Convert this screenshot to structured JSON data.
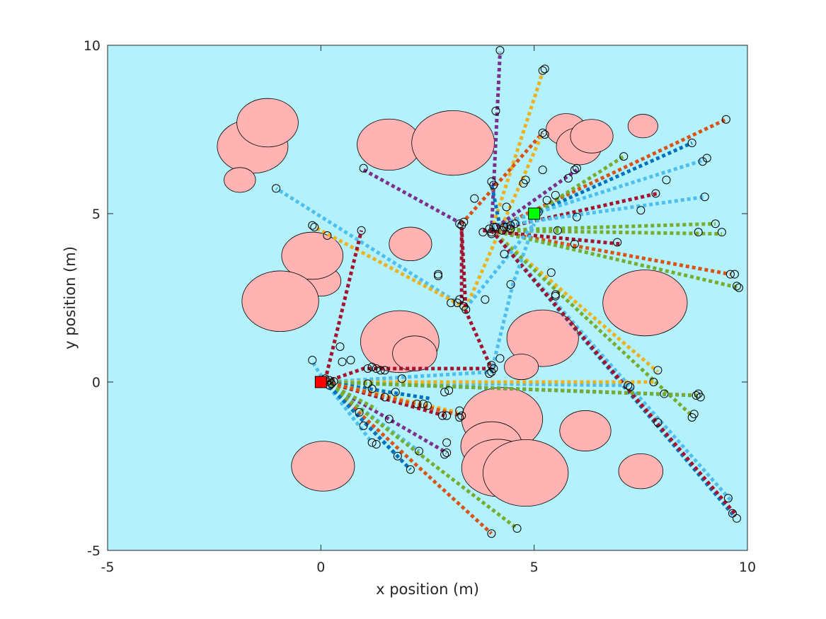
{
  "chart_data": {
    "type": "scatter",
    "xlabel": "x position (m)",
    "ylabel": "y position (m)",
    "xlim": [
      -5,
      10
    ],
    "ylim": [
      -5,
      10
    ],
    "xticks": [
      -5,
      0,
      5,
      10
    ],
    "yticks": [
      -5,
      0,
      5,
      10
    ],
    "grid": false,
    "colors": {
      "background": "#b3f2fc",
      "obstacle_fill": "#ffb3b3",
      "obstacle_edge": "#000000",
      "start_marker": "#ff0000",
      "goal_marker": "#00ff00",
      "axis": "#262626",
      "paths": [
        "#0072bd",
        "#d95319",
        "#edb120",
        "#7e2f8e",
        "#77ac30",
        "#4dbeee",
        "#a2142f"
      ]
    },
    "start": {
      "x": 0,
      "y": 0
    },
    "goal": {
      "x": 5,
      "y": 5
    },
    "obstacles": [
      {
        "cx": -1.6,
        "cy": 7.0,
        "rx": 0.83,
        "ry": 0.8
      },
      {
        "cx": -1.25,
        "cy": 7.7,
        "rx": 0.72,
        "ry": 0.72
      },
      {
        "cx": -1.9,
        "cy": 6.0,
        "rx": 0.37,
        "ry": 0.37
      },
      {
        "cx": 1.6,
        "cy": 7.05,
        "rx": 0.75,
        "ry": 0.76
      },
      {
        "cx": 3.1,
        "cy": 7.1,
        "rx": 0.97,
        "ry": 0.96
      },
      {
        "cx": 5.75,
        "cy": 7.5,
        "rx": 0.47,
        "ry": 0.47
      },
      {
        "cx": 6.05,
        "cy": 7.0,
        "rx": 0.53,
        "ry": 0.55
      },
      {
        "cx": 6.35,
        "cy": 7.3,
        "rx": 0.5,
        "ry": 0.5
      },
      {
        "cx": 7.55,
        "cy": 7.6,
        "rx": 0.35,
        "ry": 0.35
      },
      {
        "cx": 2.1,
        "cy": 4.1,
        "rx": 0.5,
        "ry": 0.5
      },
      {
        "cx": 0.0,
        "cy": 3.0,
        "rx": 0.47,
        "ry": 0.45
      },
      {
        "cx": -0.2,
        "cy": 3.75,
        "rx": 0.72,
        "ry": 0.7
      },
      {
        "cx": -0.95,
        "cy": 2.4,
        "rx": 0.9,
        "ry": 0.9
      },
      {
        "cx": 1.85,
        "cy": 1.2,
        "rx": 0.92,
        "ry": 0.92
      },
      {
        "cx": 2.2,
        "cy": 0.85,
        "rx": 0.52,
        "ry": 0.52
      },
      {
        "cx": 5.2,
        "cy": 1.3,
        "rx": 0.84,
        "ry": 0.84
      },
      {
        "cx": 4.7,
        "cy": 0.45,
        "rx": 0.4,
        "ry": 0.38
      },
      {
        "cx": 7.6,
        "cy": 2.35,
        "rx": 0.99,
        "ry": 0.98
      },
      {
        "cx": 4.25,
        "cy": -1.1,
        "rx": 0.95,
        "ry": 0.94
      },
      {
        "cx": 4.0,
        "cy": -1.9,
        "rx": 0.72,
        "ry": 0.72
      },
      {
        "cx": 4.15,
        "cy": -2.55,
        "rx": 0.85,
        "ry": 0.85
      },
      {
        "cx": 4.8,
        "cy": -2.7,
        "rx": 1.0,
        "ry": 0.99
      },
      {
        "cx": 6.2,
        "cy": -1.45,
        "rx": 0.6,
        "ry": 0.6
      },
      {
        "cx": 7.5,
        "cy": -2.65,
        "rx": 0.52,
        "ry": 0.52
      },
      {
        "cx": 0.05,
        "cy": -2.5,
        "rx": 0.74,
        "ry": 0.74
      }
    ],
    "paths": [
      {
        "c": 3,
        "p": [
          [
            3.3,
            4.7
          ],
          [
            1.0,
            6.3
          ]
        ]
      },
      {
        "c": 3,
        "p": [
          [
            4.0,
            4.5
          ],
          [
            4.2,
            9.8
          ]
        ]
      },
      {
        "c": 2,
        "p": [
          [
            4.0,
            4.5
          ],
          [
            5.2,
            9.2
          ]
        ]
      },
      {
        "c": 1,
        "p": [
          [
            3.3,
            4.7
          ],
          [
            5.2,
            7.4
          ]
        ]
      },
      {
        "c": 2,
        "p": [
          [
            3.4,
            2.2
          ],
          [
            5.2,
            7.4
          ]
        ]
      },
      {
        "c": 0,
        "p": [
          [
            4.2,
            4.6
          ],
          [
            4.0,
            5.9
          ]
        ]
      },
      {
        "c": 5,
        "p": [
          [
            3.4,
            2.2
          ],
          [
            -1.05,
            5.75
          ]
        ]
      },
      {
        "c": 2,
        "p": [
          [
            3.4,
            2.2
          ],
          [
            -0.15,
            4.6
          ]
        ]
      },
      {
        "c": 6,
        "p": [
          [
            0.1,
            0.05
          ],
          [
            0.95,
            4.5
          ]
        ]
      },
      {
        "c": 1,
        "p": [
          [
            4.0,
            4.5
          ],
          [
            9.5,
            7.8
          ]
        ]
      },
      {
        "c": 0,
        "p": [
          [
            5.0,
            5.0
          ],
          [
            8.7,
            7.1
          ]
        ]
      },
      {
        "c": 4,
        "p": [
          [
            5.0,
            5.0
          ],
          [
            7.1,
            6.7
          ]
        ]
      },
      {
        "c": 5,
        "p": [
          [
            4.0,
            4.6
          ],
          [
            9.0,
            6.6
          ]
        ]
      },
      {
        "c": 6,
        "p": [
          [
            4.0,
            4.5
          ],
          [
            7.9,
            5.6
          ]
        ]
      },
      {
        "c": 5,
        "p": [
          [
            4.0,
            4.6
          ],
          [
            9.0,
            5.5
          ]
        ]
      },
      {
        "c": 4,
        "p": [
          [
            4.0,
            4.5
          ],
          [
            9.25,
            4.7
          ]
        ]
      },
      {
        "c": 4,
        "p": [
          [
            4.0,
            4.5
          ],
          [
            9.4,
            4.4
          ]
        ]
      },
      {
        "c": 1,
        "p": [
          [
            4.0,
            4.5
          ],
          [
            9.6,
            3.2
          ]
        ]
      },
      {
        "c": 4,
        "p": [
          [
            4.0,
            4.5
          ],
          [
            9.8,
            2.8
          ]
        ]
      },
      {
        "c": 6,
        "p": [
          [
            3.8,
            4.5
          ],
          [
            7.0,
            4.1
          ]
        ]
      },
      {
        "c": 2,
        "p": [
          [
            4.0,
            4.5
          ],
          [
            7.9,
            0.3
          ]
        ]
      },
      {
        "c": 4,
        "p": [
          [
            4.0,
            4.5
          ],
          [
            8.7,
            -1.0
          ]
        ]
      },
      {
        "c": 1,
        "p": [
          [
            4.0,
            4.5
          ],
          [
            7.9,
            -1.2
          ]
        ]
      },
      {
        "c": 0,
        "p": [
          [
            4.0,
            4.5
          ],
          [
            9.7,
            -4.0
          ]
        ]
      },
      {
        "c": 5,
        "p": [
          [
            4.0,
            4.5
          ],
          [
            9.6,
            -3.5
          ]
        ]
      },
      {
        "c": 6,
        "p": [
          [
            4.0,
            4.5
          ],
          [
            9.7,
            -3.9
          ]
        ]
      },
      {
        "c": 3,
        "p": [
          [
            4.0,
            4.5
          ],
          [
            6.0,
            6.3
          ]
        ]
      },
      {
        "c": 5,
        "p": [
          [
            3.4,
            2.2
          ],
          [
            5.0,
            4.7
          ]
        ]
      },
      {
        "c": 6,
        "p": [
          [
            3.3,
            2.3
          ],
          [
            3.3,
            4.6
          ]
        ]
      },
      {
        "c": 6,
        "p": [
          [
            0.1,
            0.0
          ],
          [
            1.0,
            0.4
          ],
          [
            4.0,
            0.4
          ],
          [
            3.4,
            2.1
          ],
          [
            3.3,
            4.6
          ]
        ]
      },
      {
        "c": 5,
        "p": [
          [
            0.1,
            0.0
          ],
          [
            4.0,
            0.3
          ],
          [
            4.5,
            2.9
          ],
          [
            5.0,
            4.7
          ]
        ]
      },
      {
        "c": 5,
        "p": [
          [
            0.1,
            0.0
          ],
          [
            7.2,
            -0.1
          ]
        ]
      },
      {
        "c": 2,
        "p": [
          [
            0.1,
            0.0
          ],
          [
            7.8,
            0.0
          ]
        ]
      },
      {
        "c": 0,
        "p": [
          [
            0.1,
            0.0
          ],
          [
            8.8,
            -0.4
          ]
        ]
      },
      {
        "c": 4,
        "p": [
          [
            0.1,
            0.0
          ],
          [
            8.9,
            -0.4
          ]
        ]
      },
      {
        "c": 0,
        "p": [
          [
            0.1,
            0.0
          ],
          [
            2.6,
            -0.5
          ]
        ]
      },
      {
        "c": 2,
        "p": [
          [
            0.1,
            0.0
          ],
          [
            3.2,
            -0.9
          ]
        ]
      },
      {
        "c": 6,
        "p": [
          [
            0.1,
            0.0
          ],
          [
            2.9,
            -1.0
          ]
        ]
      },
      {
        "c": 1,
        "p": [
          [
            0.1,
            0.0
          ],
          [
            3.3,
            -1.0
          ]
        ]
      },
      {
        "c": 3,
        "p": [
          [
            0.1,
            0.0
          ],
          [
            2.95,
            -2.1
          ]
        ]
      },
      {
        "c": 5,
        "p": [
          [
            0.1,
            0.0
          ],
          [
            2.3,
            -2.05
          ]
        ]
      },
      {
        "c": 0,
        "p": [
          [
            0.1,
            0.0
          ],
          [
            2.1,
            -2.6
          ]
        ]
      },
      {
        "c": 1,
        "p": [
          [
            0.1,
            0.0
          ],
          [
            4.0,
            -4.5
          ]
        ]
      },
      {
        "c": 4,
        "p": [
          [
            0.1,
            0.0
          ],
          [
            4.6,
            -4.35
          ]
        ]
      },
      {
        "c": 5,
        "p": [
          [
            0.1,
            0.0
          ],
          [
            1.2,
            -1.8
          ]
        ]
      },
      {
        "c": 0,
        "p": [
          [
            0.1,
            0.0
          ],
          [
            1.8,
            -2.2
          ]
        ]
      },
      {
        "c": 4,
        "p": [
          [
            0.1,
            0.0
          ],
          [
            1.3,
            -0.8
          ]
        ]
      },
      {
        "c": 5,
        "p": [
          [
            0.1,
            0.0
          ],
          [
            -0.2,
            0.6
          ]
        ]
      }
    ],
    "waypoints": [
      [
        0.0,
        0.05
      ],
      [
        0.1,
        0.1
      ],
      [
        0.15,
        0.0
      ],
      [
        0.2,
        0.05
      ],
      [
        0.25,
        -0.05
      ],
      [
        0.2,
        -0.1
      ],
      [
        0.3,
        0.02
      ],
      [
        -0.2,
        0.65
      ],
      [
        0.45,
        1.05
      ],
      [
        0.5,
        0.6
      ],
      [
        0.95,
        4.5
      ],
      [
        -0.15,
        4.6
      ],
      [
        -0.2,
        4.65
      ],
      [
        0.15,
        4.35
      ],
      [
        1.1,
        0.4
      ],
      [
        1.2,
        0.45
      ],
      [
        1.3,
        0.4
      ],
      [
        1.4,
        0.35
      ],
      [
        1.5,
        0.35
      ],
      [
        1.1,
        -0.05
      ],
      [
        1.2,
        -0.2
      ],
      [
        1.5,
        -0.45
      ],
      [
        1.75,
        -0.3
      ],
      [
        1.9,
        0.1
      ],
      [
        2.25,
        -0.65
      ],
      [
        2.4,
        -0.65
      ],
      [
        2.5,
        -0.7
      ],
      [
        2.9,
        -0.3
      ],
      [
        3.0,
        -0.25
      ],
      [
        2.85,
        -1.0
      ],
      [
        2.95,
        -1.0
      ],
      [
        3.25,
        -0.85
      ],
      [
        3.3,
        -1.0
      ],
      [
        3.25,
        -1.05
      ],
      [
        2.95,
        -1.8
      ],
      [
        2.95,
        -2.1
      ],
      [
        2.9,
        -2.15
      ],
      [
        2.3,
        -2.05
      ],
      [
        1.8,
        -2.2
      ],
      [
        1.2,
        -1.8
      ],
      [
        1.3,
        -1.85
      ],
      [
        2.1,
        -2.6
      ],
      [
        0.9,
        -0.9
      ],
      [
        1.0,
        -1.3
      ],
      [
        1.6,
        -1.1
      ],
      [
        4.0,
        -4.5
      ],
      [
        4.6,
        -4.35
      ],
      [
        4.0,
        0.3
      ],
      [
        4.05,
        0.4
      ],
      [
        4.0,
        0.5
      ],
      [
        3.95,
        0.25
      ],
      [
        4.2,
        0.7
      ],
      [
        4.45,
        2.9
      ],
      [
        3.85,
        2.45
      ],
      [
        3.4,
        2.15
      ],
      [
        3.35,
        2.25
      ],
      [
        3.25,
        2.45
      ],
      [
        3.2,
        2.35
      ],
      [
        3.05,
        2.35
      ],
      [
        2.75,
        3.2
      ],
      [
        2.75,
        3.15
      ],
      [
        3.25,
        4.7
      ],
      [
        3.3,
        4.65
      ],
      [
        3.35,
        4.75
      ],
      [
        3.95,
        4.55
      ],
      [
        4.05,
        4.6
      ],
      [
        4.0,
        4.45
      ],
      [
        3.8,
        4.45
      ],
      [
        4.1,
        4.6
      ],
      [
        4.25,
        4.5
      ],
      [
        4.35,
        4.6
      ],
      [
        4.45,
        4.55
      ],
      [
        4.3,
        4.6
      ],
      [
        4.45,
        4.65
      ],
      [
        4.55,
        4.7
      ],
      [
        4.0,
        4.4
      ],
      [
        4.3,
        3.8
      ],
      [
        4.35,
        5.2
      ],
      [
        4.0,
        5.95
      ],
      [
        4.05,
        5.85
      ],
      [
        3.6,
        5.45
      ],
      [
        4.1,
        8.05
      ],
      [
        4.2,
        9.85
      ],
      [
        5.2,
        9.25
      ],
      [
        5.25,
        9.3
      ],
      [
        5.2,
        7.4
      ],
      [
        5.25,
        7.35
      ],
      [
        5.2,
        6.3
      ],
      [
        4.75,
        5.9
      ],
      [
        4.8,
        6.0
      ],
      [
        5.05,
        5.05
      ],
      [
        5.1,
        5.05
      ],
      [
        5.3,
        5.4
      ],
      [
        5.5,
        5.55
      ],
      [
        5.8,
        6.05
      ],
      [
        5.95,
        6.3
      ],
      [
        6.0,
        6.35
      ],
      [
        5.55,
        4.5
      ],
      [
        6.0,
        4.9
      ],
      [
        5.95,
        4.1
      ],
      [
        5.4,
        3.25
      ],
      [
        5.5,
        2.6
      ],
      [
        5.5,
        2.55
      ],
      [
        6.95,
        4.15
      ],
      [
        7.5,
        5.1
      ],
      [
        7.1,
        6.7
      ],
      [
        7.85,
        5.6
      ],
      [
        8.1,
        6.0
      ],
      [
        8.7,
        7.1
      ],
      [
        8.95,
        6.55
      ],
      [
        9.05,
        6.65
      ],
      [
        9.5,
        7.8
      ],
      [
        9.0,
        5.5
      ],
      [
        9.25,
        4.7
      ],
      [
        8.85,
        4.45
      ],
      [
        9.4,
        4.45
      ],
      [
        9.6,
        3.2
      ],
      [
        9.7,
        3.2
      ],
      [
        9.8,
        2.8
      ],
      [
        9.75,
        2.85
      ],
      [
        7.9,
        0.35
      ],
      [
        7.2,
        -0.1
      ],
      [
        7.25,
        -0.15
      ],
      [
        7.8,
        0.0
      ],
      [
        8.05,
        -0.35
      ],
      [
        8.8,
        -0.4
      ],
      [
        8.9,
        -0.45
      ],
      [
        8.85,
        -0.35
      ],
      [
        8.75,
        -0.95
      ],
      [
        8.7,
        -1.05
      ],
      [
        7.9,
        -1.2
      ],
      [
        9.55,
        -3.45
      ],
      [
        9.65,
        -3.9
      ],
      [
        9.75,
        -4.05
      ],
      [
        -1.05,
        5.75
      ],
      [
        1.0,
        6.35
      ],
      [
        0.7,
        0.65
      ]
    ]
  }
}
